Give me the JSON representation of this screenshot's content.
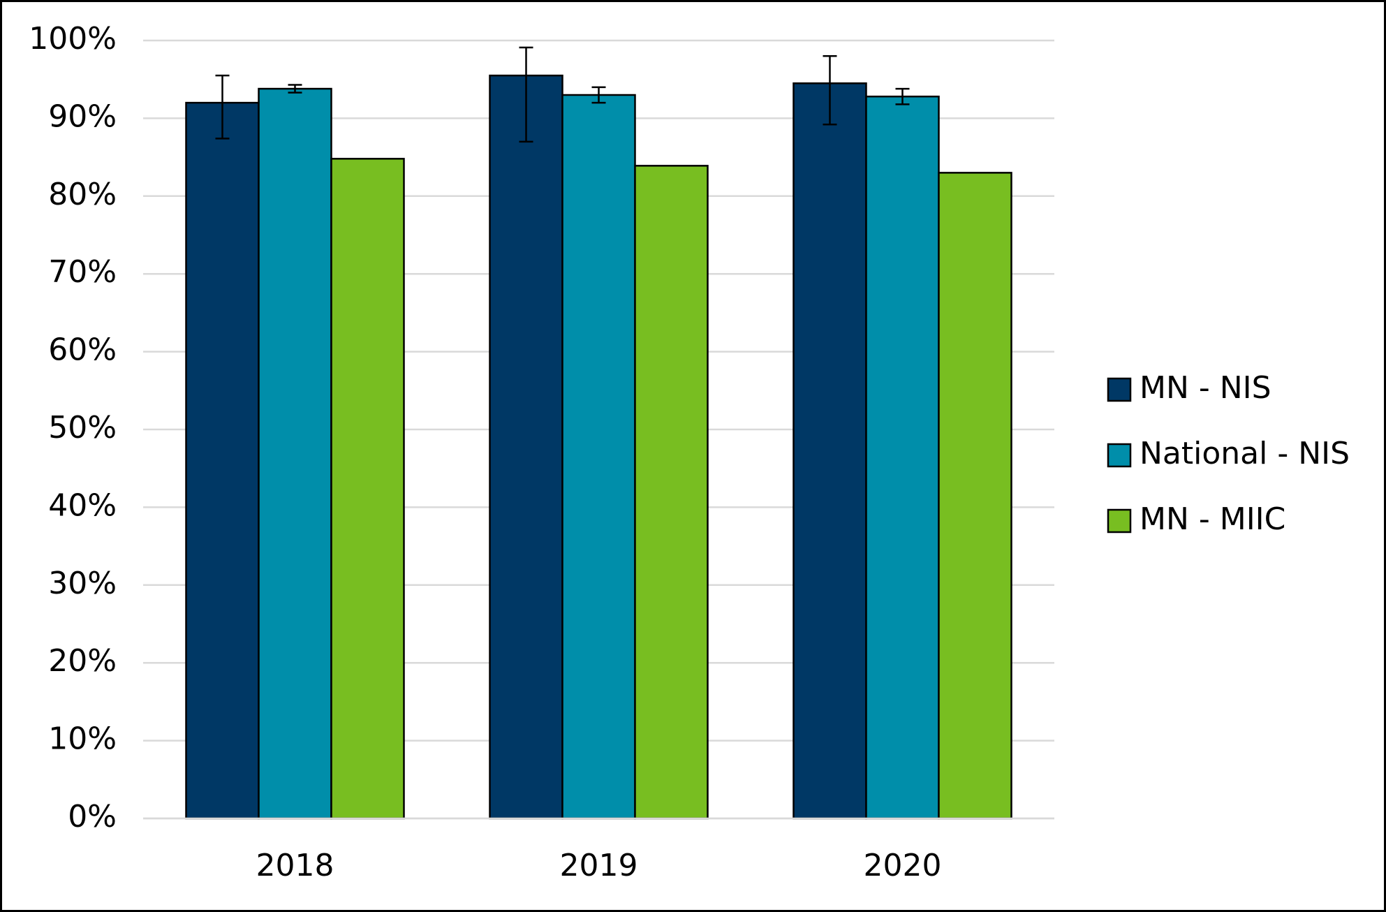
{
  "chart_data": {
    "type": "bar",
    "categories": [
      "2018",
      "2019",
      "2020"
    ],
    "series": [
      {
        "name": "MN - NIS",
        "color": "#003865",
        "values": [
          92.0,
          95.5,
          94.5
        ],
        "err_minus": [
          4.6,
          8.5,
          5.3
        ],
        "err_plus": [
          3.5,
          3.6,
          3.5
        ]
      },
      {
        "name": "National - NIS",
        "color": "#008eaa",
        "values": [
          93.8,
          93.0,
          92.8
        ],
        "err_minus": [
          0.5,
          1.0,
          1.0
        ],
        "err_plus": [
          0.5,
          1.0,
          1.0
        ]
      },
      {
        "name": "MN - MIIC",
        "color": "#78be21",
        "values": [
          84.8,
          83.9,
          83.0
        ]
      }
    ],
    "ylim": [
      0,
      100
    ],
    "yticks": [
      {
        "value": 0,
        "label": "0%"
      },
      {
        "value": 10,
        "label": "10%"
      },
      {
        "value": 20,
        "label": "20%"
      },
      {
        "value": 30,
        "label": "30%"
      },
      {
        "value": 40,
        "label": "40%"
      },
      {
        "value": 50,
        "label": "50%"
      },
      {
        "value": 60,
        "label": "60%"
      },
      {
        "value": 70,
        "label": "70%"
      },
      {
        "value": 80,
        "label": "80%"
      },
      {
        "value": 90,
        "label": "90%"
      },
      {
        "value": 100,
        "label": "100%"
      }
    ],
    "grid": true,
    "legend": "right"
  }
}
